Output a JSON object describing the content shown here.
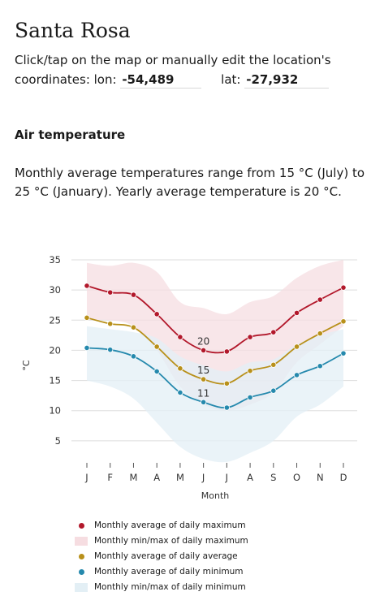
{
  "page": {
    "title": "Santa Rosa",
    "coords_prefix": "Click/tap on the map or manually edit the location's coordinates: lon:",
    "lon": "-54,489",
    "lat_label": "lat:",
    "lat": "-27,932",
    "section_title": "Air temperature",
    "description": "Monthly average temperatures range from 15 °C (July) to 25 °C (January). Yearly average temperature is 20 °C."
  },
  "colors": {
    "max": "#b2182b",
    "max_band": "#f6dde1",
    "avg": "#b8901a",
    "min": "#2589ad",
    "min_band": "#e3eff5",
    "grid": "#dddddd",
    "axis_text": "#333333"
  },
  "chart_data": {
    "type": "line",
    "categories": [
      "J",
      "F",
      "M",
      "A",
      "M",
      "J",
      "J",
      "A",
      "S",
      "O",
      "N",
      "D"
    ],
    "xlabel": "Month",
    "ylabel": "°C",
    "ylim": [
      0,
      35
    ],
    "yticks": [
      5,
      10,
      15,
      20,
      25,
      30,
      35
    ],
    "series": [
      {
        "name": "Monthly average of daily maximum",
        "key": "max",
        "values": [
          30.7,
          29.6,
          29.2,
          26.0,
          22.2,
          20.0,
          19.8,
          22.2,
          23.0,
          26.2,
          28.4,
          30.4
        ]
      },
      {
        "name": "Monthly average of daily average",
        "key": "avg",
        "values": [
          25.4,
          24.4,
          23.8,
          20.6,
          17.0,
          15.2,
          14.5,
          16.6,
          17.6,
          20.6,
          22.8,
          24.8
        ]
      },
      {
        "name": "Monthly average of daily minimum",
        "key": "min",
        "values": [
          20.4,
          20.1,
          19.0,
          16.5,
          13.0,
          11.4,
          10.5,
          12.2,
          13.3,
          15.9,
          17.4,
          19.5
        ]
      }
    ],
    "bands": [
      {
        "name": "Monthly min/max of daily maximum",
        "key": "max_band",
        "low": [
          25.0,
          25.0,
          24.0,
          20.0,
          14.0,
          11.0,
          10.0,
          11.0,
          13.0,
          18.0,
          21.0,
          24.0
        ],
        "high": [
          34.5,
          34.0,
          34.5,
          33.0,
          28.0,
          27.0,
          26.0,
          28.0,
          29.0,
          32.0,
          34.0,
          35.0
        ]
      },
      {
        "name": "Monthly min/max of daily minimum",
        "key": "min_band",
        "low": [
          15.0,
          14.0,
          12.0,
          8.0,
          4.0,
          2.0,
          1.5,
          3.0,
          5.0,
          9.0,
          11.0,
          14.0
        ],
        "high": [
          24.0,
          23.5,
          23.0,
          22.0,
          19.0,
          17.5,
          16.5,
          18.0,
          18.5,
          21.0,
          22.5,
          23.5
        ]
      }
    ],
    "annotations": [
      {
        "series": "max",
        "month_index": 5,
        "text": "20"
      },
      {
        "series": "avg",
        "month_index": 5,
        "text": "15"
      },
      {
        "series": "min",
        "month_index": 5,
        "text": "11"
      }
    ],
    "legend": [
      {
        "label": "Monthly average of daily maximum",
        "kind": "dot",
        "color_key": "max"
      },
      {
        "label": "Monthly min/max of daily maximum",
        "kind": "band",
        "color_key": "max_band"
      },
      {
        "label": "Monthly average of daily average",
        "kind": "dot",
        "color_key": "avg"
      },
      {
        "label": "Monthly average of daily minimum",
        "kind": "dot",
        "color_key": "min"
      },
      {
        "label": "Monthly min/max of daily minimum",
        "kind": "band",
        "color_key": "min_band"
      }
    ]
  }
}
